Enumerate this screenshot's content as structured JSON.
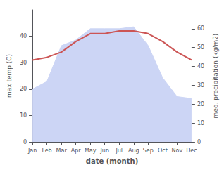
{
  "chart_data": {
    "type": "line",
    "categories": [
      "Jan",
      "Feb",
      "Mar",
      "Apr",
      "May",
      "Jun",
      "Jul",
      "Aug",
      "Sep",
      "Oct",
      "Nov",
      "Dec"
    ],
    "series": [
      {
        "type": "line",
        "color": "#cc5555",
        "values": [
          31,
          32,
          34,
          38,
          41,
          41,
          42,
          42,
          41,
          38,
          34,
          31
        ]
      },
      {
        "type": "area",
        "axis": "y2",
        "color": "#ccd5f5",
        "values": [
          28,
          32,
          51,
          54,
          60,
          60,
          60,
          61,
          51,
          34,
          24,
          23
        ]
      }
    ],
    "xlabel": "date (month)",
    "ylabel": "max temp (C)",
    "y2label": "med. precipitation (kg/m2)",
    "ylim": [
      0,
      50
    ],
    "yticks": [
      0,
      10,
      20,
      30,
      40
    ],
    "y2lim": [
      0,
      70
    ],
    "y2ticks": [
      0,
      10,
      20,
      30,
      40,
      50,
      60
    ],
    "grid": false
  }
}
